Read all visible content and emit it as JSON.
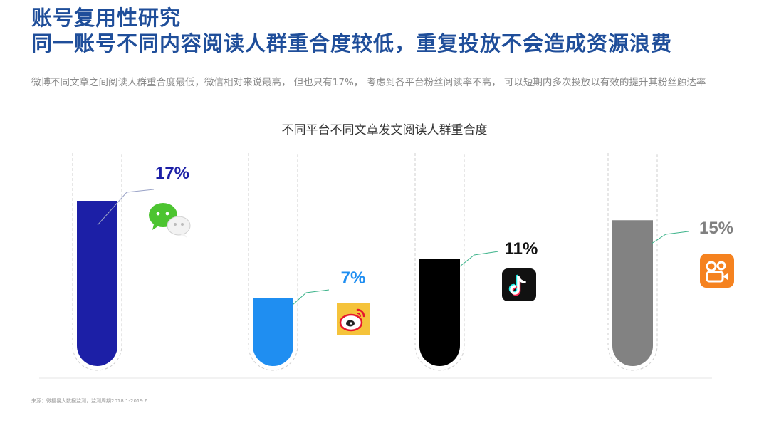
{
  "header": {
    "title": "账号复用性研究",
    "subtitle": "同一账号不同内容阅读人群重合度较低，重复投放不会造成资源浪费",
    "description": "微博不同文章之间阅读人群重合度最低，微信相对来说最高， 但也只有17%， 考虑到各平台粉丝阅读率不高， 可以短期内多次投放以有效的提升其粉丝触达率"
  },
  "chart_data": {
    "type": "bar",
    "title": "不同平台不同文章发文阅读人群重合度",
    "categories": [
      "微信",
      "微博",
      "抖音",
      "快手"
    ],
    "values": [
      17,
      7,
      11,
      15
    ],
    "labels": [
      "17%",
      "7%",
      "11%",
      "15%"
    ],
    "colors": [
      "#1c1fa6",
      "#1f8ef1",
      "#000000",
      "#828282"
    ],
    "label_colors": [
      "#1c1fa6",
      "#1f8ef1",
      "#111111",
      "#808080"
    ],
    "icons": [
      "wechat-icon",
      "weibo-icon",
      "douyin-icon",
      "kuaishou-icon"
    ],
    "ylim": [
      0,
      17
    ],
    "grid": false
  },
  "footer": {
    "source": "来源：微播易大数据监测，监测周期2018.1-2019.6"
  }
}
